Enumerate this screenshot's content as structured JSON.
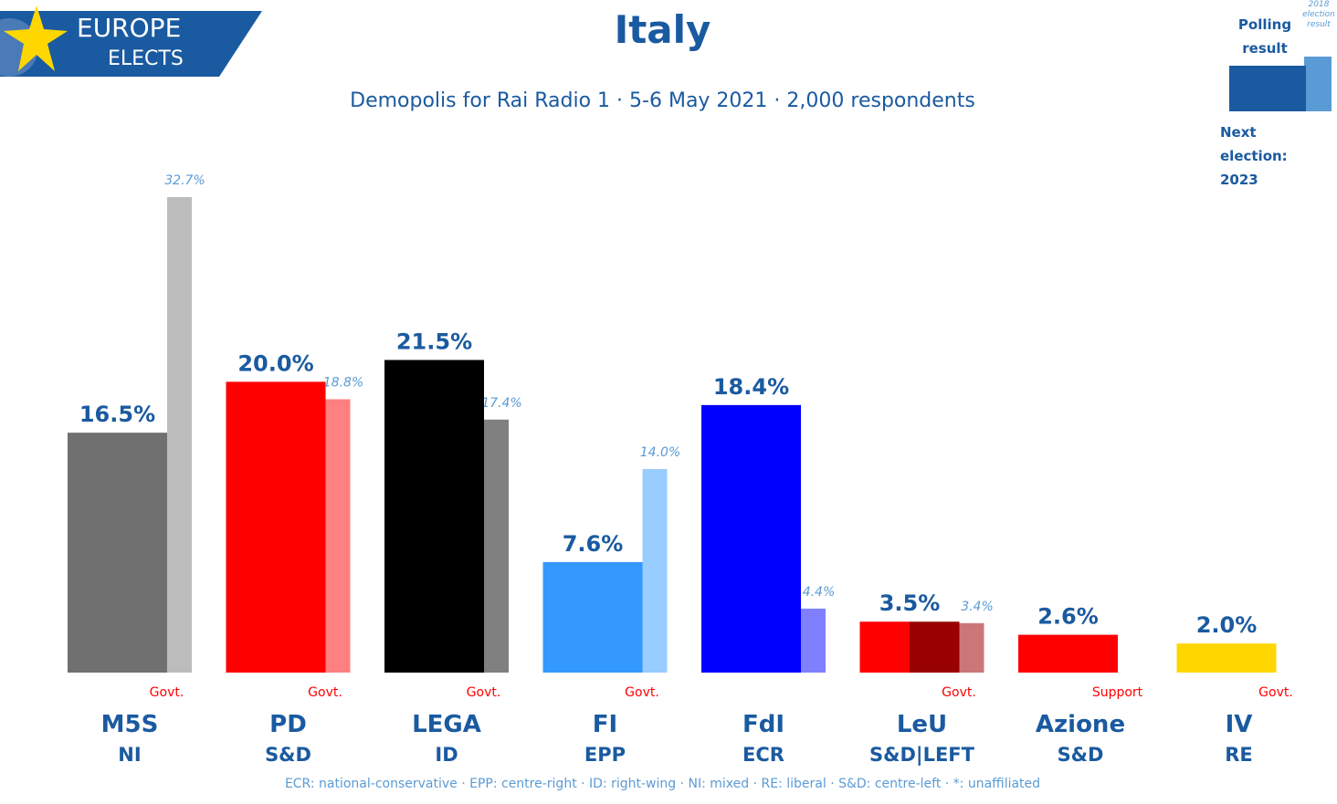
{
  "logo": {
    "line1": "EUROPE",
    "line2": "ELECTS"
  },
  "title": "Italy",
  "subtitle": "Demopolis for Rai Radio 1 · 5-6 May 2021 · 2,000 respondents",
  "legend": {
    "poll_label": "Polling result",
    "election_label": "2018 election result",
    "next_election_label": "Next election:",
    "next_election_year": "2023"
  },
  "colors": {
    "accent": "#1a5aa0",
    "light_accent": "#5b9bd5",
    "status": "#ff0000"
  },
  "chart_data": {
    "type": "bar",
    "title": "Italy",
    "ylabel": "",
    "xlabel": "",
    "ylim": [
      0,
      35
    ],
    "series": [
      {
        "name": "Polling result",
        "values": [
          16.5,
          20.0,
          21.5,
          7.6,
          18.4,
          3.5,
          2.6,
          2.0
        ]
      },
      {
        "name": "2018 election result",
        "values": [
          32.7,
          18.8,
          17.4,
          14.0,
          4.4,
          3.4,
          null,
          null
        ]
      }
    ],
    "parties": [
      {
        "name": "M5S",
        "group": "NI",
        "status": "Govt.",
        "poll": 16.5,
        "poll_label": "16.5%",
        "prev": 32.7,
        "prev_label": "32.7%",
        "color": "#707070",
        "prev_color": "#bcbcbc"
      },
      {
        "name": "PD",
        "group": "S&D",
        "status": "Govt.",
        "poll": 20.0,
        "poll_label": "20.0%",
        "prev": 18.8,
        "prev_label": "18.8%",
        "color": "#ff0000",
        "prev_color": "#ff8080"
      },
      {
        "name": "LEGA",
        "group": "ID",
        "status": "Govt.",
        "poll": 21.5,
        "poll_label": "21.5%",
        "prev": 17.4,
        "prev_label": "17.4%",
        "color": "#000000",
        "prev_color": "#808080"
      },
      {
        "name": "FI",
        "group": "EPP",
        "status": "Govt.",
        "poll": 7.6,
        "poll_label": "7.6%",
        "prev": 14.0,
        "prev_label": "14.0%",
        "color": "#3399ff",
        "prev_color": "#99ccff"
      },
      {
        "name": "FdI",
        "group": "ECR",
        "status": "",
        "poll": 18.4,
        "poll_label": "18.4%",
        "prev": 4.4,
        "prev_label": "4.4%",
        "color": "#0000ff",
        "prev_color": "#8080ff"
      },
      {
        "name": "LeU",
        "group": "S&D|LEFT",
        "status": "Govt.",
        "poll": 3.5,
        "poll_label": "3.5%",
        "prev": 3.4,
        "prev_label": "3.4%",
        "color": "#ff0000",
        "poll_color2": "#990000",
        "prev_color": "#cc7777"
      },
      {
        "name": "Azione",
        "group": "S&D",
        "status": "Support",
        "poll": 2.6,
        "poll_label": "2.6%",
        "prev": null,
        "prev_label": "",
        "color": "#ff0000",
        "prev_color": "#ff8080"
      },
      {
        "name": "IV",
        "group": "RE",
        "status": "Govt.",
        "poll": 2.0,
        "poll_label": "2.0%",
        "prev": null,
        "prev_label": "",
        "color": "#ffd700",
        "prev_color": "#ffe680"
      }
    ]
  },
  "footnote": "ECR: national-conservative · EPP: centre-right · ID: right-wing · NI: mixed · RE: liberal · S&D: centre-left · *: unaffiliated"
}
